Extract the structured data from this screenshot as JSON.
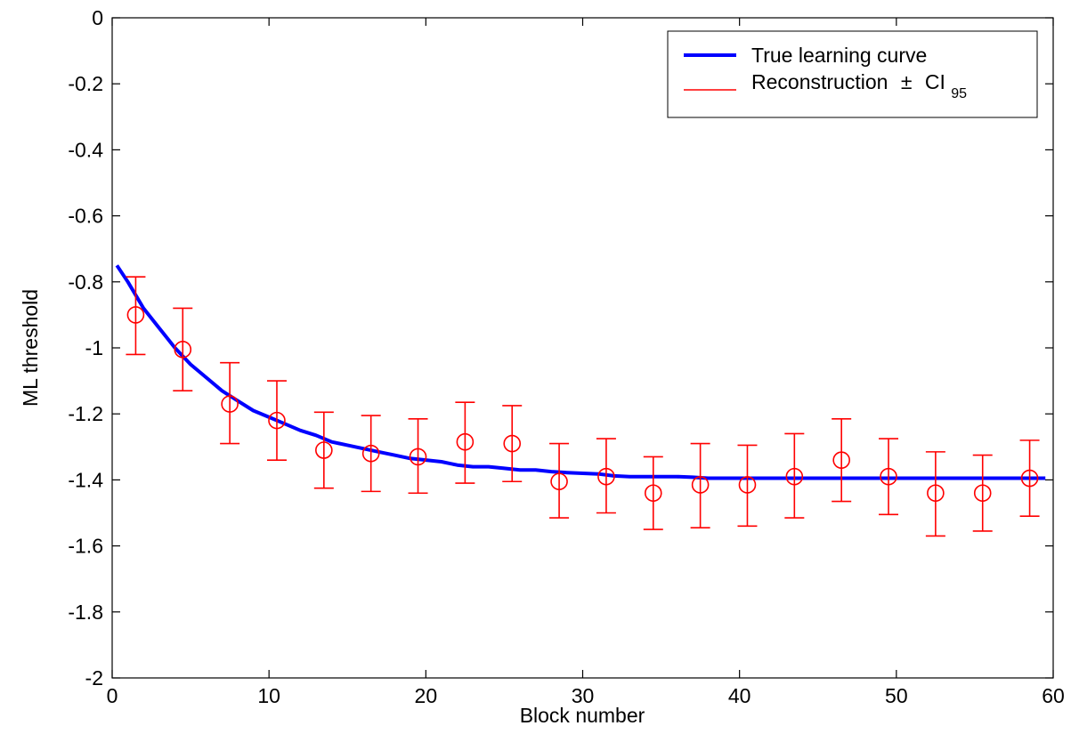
{
  "chart_data": {
    "type": "line",
    "title": "",
    "xlabel": "Block number",
    "ylabel": "ML threshold",
    "xlim": [
      0,
      60
    ],
    "ylim": [
      -2,
      0
    ],
    "xticks": [
      0,
      10,
      20,
      30,
      40,
      50,
      60
    ],
    "yticks": [
      0,
      -0.2,
      -0.4,
      -0.6,
      -0.8,
      -1,
      -1.2,
      -1.4,
      -1.6,
      -1.8,
      -2
    ],
    "xtick_labels": [
      "0",
      "10",
      "20",
      "30",
      "40",
      "50",
      "60"
    ],
    "ytick_labels": [
      "0",
      "-0.2",
      "-0.4",
      "-0.6",
      "-0.8",
      "-1",
      "-1.2",
      "-1.4",
      "-1.6",
      "-1.8",
      "-2"
    ],
    "grid": false,
    "legend_position": "top-right",
    "legend": {
      "entries": [
        {
          "label": "True learning curve"
        },
        {
          "label": "Reconstruction",
          "symbol": "±",
          "suffix": "CI",
          "subscript": "95"
        }
      ]
    },
    "colors": {
      "true_curve": "#0000ff",
      "reconstruction": "#ff0000"
    },
    "series": [
      {
        "name": "True learning curve",
        "style": "line",
        "x": [
          0.3,
          1,
          2,
          3,
          4,
          5,
          6,
          7,
          8,
          9,
          10,
          11,
          12,
          13,
          14,
          15,
          16,
          17,
          18,
          19,
          20,
          21,
          22,
          23,
          24,
          25,
          26,
          27,
          28,
          29,
          30,
          31,
          32,
          33,
          34,
          35,
          36,
          37,
          38,
          39,
          40,
          45,
          50,
          55,
          59.5
        ],
        "y": [
          -0.75,
          -0.8,
          -0.88,
          -0.94,
          -1.0,
          -1.05,
          -1.09,
          -1.13,
          -1.16,
          -1.19,
          -1.21,
          -1.23,
          -1.25,
          -1.265,
          -1.285,
          -1.295,
          -1.305,
          -1.315,
          -1.325,
          -1.335,
          -1.34,
          -1.345,
          -1.355,
          -1.36,
          -1.36,
          -1.365,
          -1.37,
          -1.37,
          -1.375,
          -1.378,
          -1.38,
          -1.382,
          -1.388,
          -1.39,
          -1.39,
          -1.39,
          -1.39,
          -1.392,
          -1.395,
          -1.395,
          -1.395,
          -1.395,
          -1.395,
          -1.395,
          -1.395
        ]
      },
      {
        "name": "Reconstruction",
        "style": "errorbar",
        "x": [
          1.5,
          4.5,
          7.5,
          10.5,
          13.5,
          16.5,
          19.5,
          22.5,
          25.5,
          28.5,
          31.5,
          34.5,
          37.5,
          40.5,
          43.5,
          46.5,
          49.5,
          52.5,
          55.5,
          58.5
        ],
        "y": [
          -0.9,
          -1.005,
          -1.17,
          -1.22,
          -1.31,
          -1.32,
          -1.33,
          -1.285,
          -1.29,
          -1.405,
          -1.39,
          -1.44,
          -1.415,
          -1.415,
          -1.39,
          -1.34,
          -1.39,
          -1.44,
          -1.44,
          -1.395
        ],
        "lower": [
          -1.02,
          -1.13,
          -1.29,
          -1.34,
          -1.425,
          -1.435,
          -1.44,
          -1.41,
          -1.405,
          -1.515,
          -1.5,
          -1.55,
          -1.545,
          -1.54,
          -1.515,
          -1.465,
          -1.505,
          -1.57,
          -1.555,
          -1.51
        ],
        "upper": [
          -0.785,
          -0.88,
          -1.045,
          -1.1,
          -1.195,
          -1.205,
          -1.215,
          -1.165,
          -1.175,
          -1.29,
          -1.275,
          -1.33,
          -1.29,
          -1.295,
          -1.26,
          -1.215,
          -1.275,
          -1.315,
          -1.325,
          -1.28
        ]
      }
    ]
  }
}
